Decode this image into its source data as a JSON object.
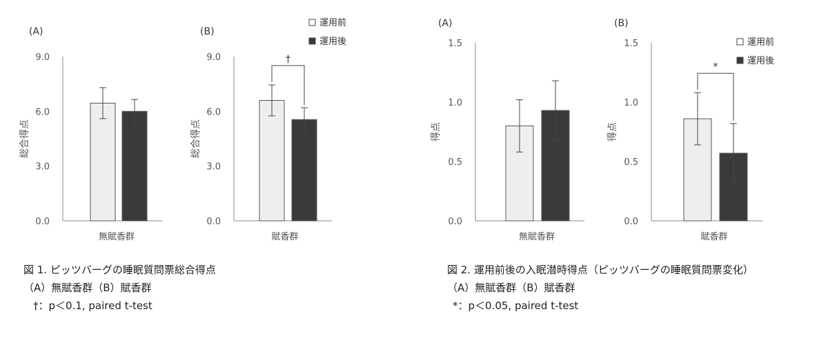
{
  "chart_data": [
    {
      "type": "bar",
      "panel": "(A)",
      "categories": [
        "無賦香群"
      ],
      "series": [
        {
          "name": "運用前",
          "values": [
            6.45
          ]
        },
        {
          "name": "運用後",
          "values": [
            6.0
          ]
        }
      ],
      "errors": [
        [
          0.85
        ],
        [
          0.65
        ]
      ],
      "xlabel": "",
      "ylabel": "総合得点",
      "ylim": [
        0,
        9
      ],
      "yticks": [
        "0.0",
        "3.0",
        "6.0",
        "9.0"
      ],
      "legend": false,
      "sig": null
    },
    {
      "type": "bar",
      "panel": "(B)",
      "categories": [
        "賦香群"
      ],
      "series": [
        {
          "name": "運用前",
          "values": [
            6.6
          ]
        },
        {
          "name": "運用後",
          "values": [
            5.55
          ]
        }
      ],
      "errors": [
        [
          0.85
        ],
        [
          0.65
        ]
      ],
      "xlabel": "",
      "ylabel": "総合得点",
      "ylim": [
        0,
        9
      ],
      "yticks": [
        "0.0",
        "3.0",
        "6.0",
        "9.0"
      ],
      "legend": "top-right",
      "sig": "†"
    },
    {
      "type": "bar",
      "panel": "(A)",
      "categories": [
        "無賦香群"
      ],
      "series": [
        {
          "name": "運用前",
          "values": [
            0.8
          ]
        },
        {
          "name": "運用後",
          "values": [
            0.93
          ]
        }
      ],
      "errors": [
        [
          0.22
        ],
        [
          0.25
        ]
      ],
      "xlabel": "",
      "ylabel": "得点",
      "ylim": [
        0,
        1.5
      ],
      "yticks": [
        "0.0",
        "0.5",
        "1.0",
        "1.5"
      ],
      "legend": false,
      "sig": null
    },
    {
      "type": "bar",
      "panel": "(B)",
      "categories": [
        "賦香群"
      ],
      "series": [
        {
          "name": "運用前",
          "values": [
            0.86
          ]
        },
        {
          "name": "運用後",
          "values": [
            0.57
          ]
        }
      ],
      "errors": [
        [
          0.22
        ],
        [
          0.25
        ]
      ],
      "xlabel": "",
      "ylabel": "得点",
      "ylim": [
        0,
        1.5
      ],
      "yticks": [
        "0.0",
        "0.5",
        "1.0",
        "1.5"
      ],
      "legend": "top-right",
      "sig": "*"
    }
  ],
  "colors": {
    "before": "#eeeeee",
    "after": "#3a3a3a",
    "axis": "#888888",
    "text": "#555555"
  },
  "captions": {
    "fig1": {
      "title": "図 1. ピッツバーグの睡眠質問票総合得点",
      "line2": "（A）無賦香群（B）賦香群",
      "line3": "†：p＜0.1, paired t-test"
    },
    "fig2": {
      "title": "図 2. 運用前後の入眠潜時得点（ピッツバーグの睡眠質問票変化）",
      "line2": "（A）無賦香群（B）賦香群",
      "line3": "*：p＜0.05, paired t-test"
    }
  }
}
